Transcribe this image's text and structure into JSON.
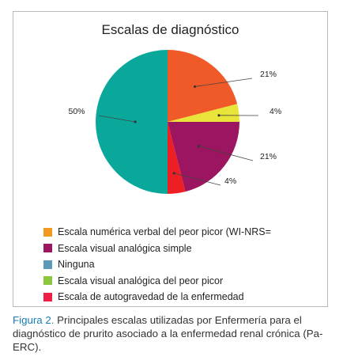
{
  "chart_data": {
    "type": "pie",
    "title": "Escalas de diagnóstico",
    "start": "12-o'clock",
    "direction": "clockwise",
    "slices": [
      {
        "label": "21%",
        "value": 21,
        "color": "#f05a28"
      },
      {
        "label": "4%",
        "value": 4,
        "color": "#e8e43a"
      },
      {
        "label": "21%",
        "value": 21,
        "color": "#9b1560"
      },
      {
        "label": "4%",
        "value": 4,
        "color": "#ee1f24"
      },
      {
        "label": "50%",
        "value": 50,
        "color": "#0aa79b"
      }
    ],
    "legend_placement": "bottom",
    "legend": [
      {
        "label": "Escala numérica verbal del peor picor (WI-NRS=",
        "color": "#f19a1f"
      },
      {
        "label": "Escala visual analógica simple",
        "color": "#9b1560"
      },
      {
        "label": "Ninguna",
        "color": "#5b9ab8"
      },
      {
        "label": "Escala visual analógica del peor picor",
        "color": "#8cc63e"
      },
      {
        "label": "Escala de autogravedad de la enfermedad",
        "color": "#ee1f45"
      }
    ]
  },
  "caption": {
    "figure_label": "Figura 2.",
    "text": " Principales escalas utilizadas por Enfermería para el diagnóstico de prurito asociado a la enfermedad renal crónica (Pa-ERC)."
  }
}
